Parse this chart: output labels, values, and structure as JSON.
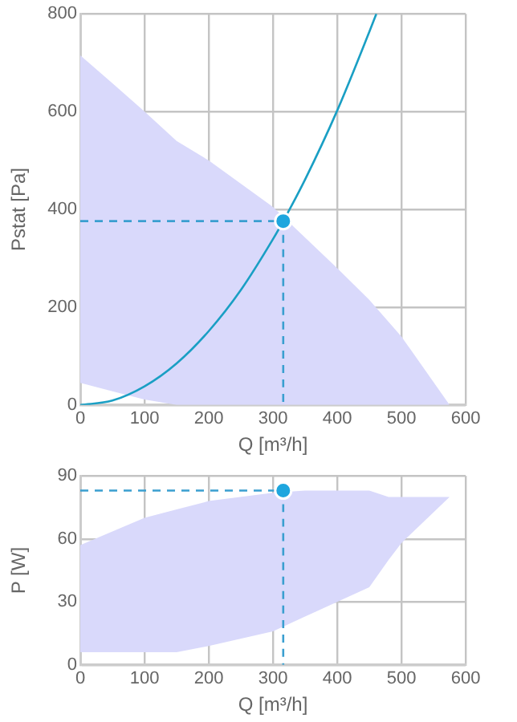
{
  "chart_data": [
    {
      "type": "line",
      "xlabel": "Q [m³/h]",
      "ylabel": "Pstat [Pa]",
      "xlim": [
        0,
        600
      ],
      "xticks": [
        0,
        100,
        200,
        300,
        400,
        500,
        600
      ],
      "ylim": [
        0,
        800
      ],
      "yticks": [
        0,
        200,
        400,
        600,
        800
      ],
      "grid": true,
      "legend": false,
      "series": [
        {
          "type": "area",
          "color": "#d9d9fb",
          "x": [
            0,
            50,
            100,
            150,
            200,
            300,
            400,
            450,
            500,
            575
          ],
          "values": [
            null,
            null,
            null,
            null,
            null,
            null,
            null,
            null,
            null,
            null
          ],
          "upper": [
            715,
            658,
            600,
            540,
            500,
            405,
            280,
            215,
            140,
            0
          ],
          "lower": [
            45,
            28,
            11,
            0,
            0,
            0,
            0,
            0,
            0,
            0
          ]
        },
        {
          "color": "#1a9fc4",
          "marker": "none",
          "line_style": "solid",
          "x": [
            0,
            50,
            100,
            150,
            200,
            250,
            300,
            316,
            350,
            400,
            450,
            461
          ],
          "values": [
            0,
            9,
            38,
            85,
            151,
            235,
            339,
            376,
            461,
            602,
            763,
            800
          ]
        },
        {
          "color": "#3a9fd0",
          "marker": "none",
          "line_style": "dashed",
          "x": [
            0,
            316,
            316
          ],
          "values": [
            376,
            376,
            0
          ]
        },
        {
          "type": "scatter",
          "color": "#1ea6de",
          "marker": "circle",
          "x": [
            316
          ],
          "values": [
            376
          ]
        }
      ]
    },
    {
      "type": "line",
      "xlabel": "Q [m³/h]",
      "ylabel": "P [W]",
      "xlim": [
        0,
        600
      ],
      "xticks": [
        0,
        100,
        200,
        300,
        400,
        500,
        600
      ],
      "ylim": [
        0,
        90
      ],
      "yticks": [
        0,
        30,
        60,
        90
      ],
      "grid": true,
      "legend": false,
      "series": [
        {
          "type": "area",
          "color": "#d9d9fb",
          "x": [
            0,
            100,
            150,
            200,
            300,
            350,
            400,
            450,
            480,
            500,
            575
          ],
          "values": [
            null,
            null,
            null,
            null,
            null,
            null,
            null,
            null,
            null,
            null,
            null
          ],
          "upper": [
            57,
            70,
            74,
            78,
            82,
            83,
            83,
            83,
            80,
            80,
            80
          ],
          "lower": [
            6,
            6,
            6,
            9,
            16,
            23,
            30,
            37,
            50,
            58,
            80
          ]
        },
        {
          "color": "#3a9fd0",
          "marker": "none",
          "line_style": "dashed",
          "x": [
            0,
            316,
            316
          ],
          "values": [
            83,
            83,
            0
          ]
        },
        {
          "type": "scatter",
          "color": "#1ea6de",
          "marker": "circle",
          "x": [
            316
          ],
          "values": [
            83
          ]
        }
      ]
    }
  ]
}
